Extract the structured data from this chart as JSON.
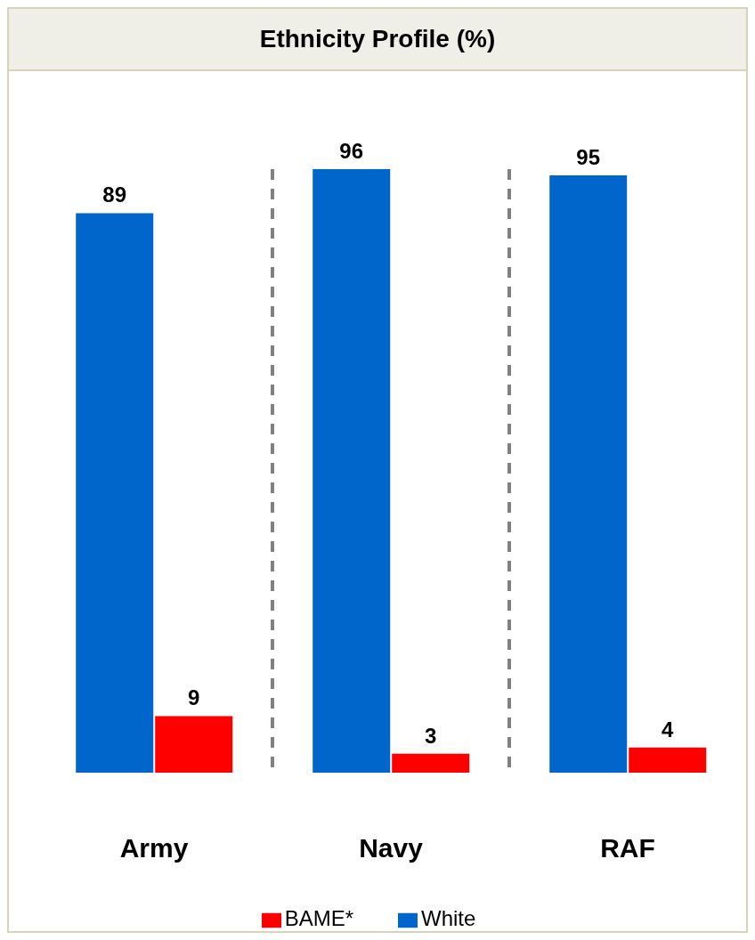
{
  "chart_data": {
    "type": "bar",
    "title": "Ethnicity Profile (%)",
    "categories": [
      "Army",
      "Navy",
      "RAF"
    ],
    "series": [
      {
        "name": "White",
        "color": "#0066cc",
        "values": [
          89,
          96,
          95
        ]
      },
      {
        "name": "BAME*",
        "color": "#ff0000",
        "values": [
          9,
          3,
          4
        ]
      }
    ],
    "data_labels": true,
    "grid": "x",
    "legend": "bottom"
  }
}
